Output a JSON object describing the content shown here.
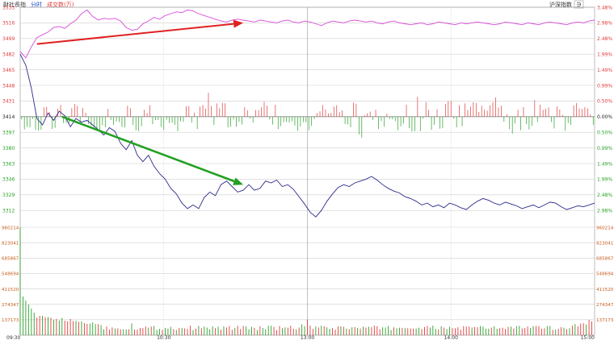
{
  "header": {
    "item1": "財社長指",
    "item2": "分时",
    "item3": "成交数(万)",
    "right_title": "沪深指数",
    "right_btn": "∋"
  },
  "colors": {
    "up": "#e23b3b",
    "down": "#2aa12a",
    "index_line": "#2b2a8a",
    "avg_line": "#d94bd9",
    "grid": "#cfcfcf",
    "arrow_red": "#e02020",
    "arrow_green": "#22a022",
    "axis_text": "#333333"
  },
  "chart_data": {
    "type": "line",
    "price_axis": {
      "left_labels": [
        "3533",
        "3516",
        "3499",
        "3482",
        "3465",
        "3448",
        "3431",
        "3414",
        "3397",
        "3380",
        "3363",
        "3346",
        "3329",
        "3312"
      ],
      "right_labels": [
        "3.48%",
        "2.98%",
        "2.48%",
        "1.99%",
        "1.49%",
        "0.99%",
        "0.50%",
        "0.00%",
        "0.50%",
        "0.99%",
        "1.49%",
        "1.99%",
        "2.48%",
        "2.98%"
      ],
      "base": "3414",
      "ylim": [
        3305,
        3533
      ]
    },
    "volume_axis": {
      "labels": [
        "960214",
        "823041",
        "685867",
        "548694",
        "411520",
        "274347",
        "137173"
      ],
      "ylim": [
        0,
        960214
      ]
    },
    "time_ticks": [
      "09:30",
      "10:30",
      "13:00",
      "14:00",
      "15:00"
    ],
    "index_series": [
      [
        0,
        3482
      ],
      [
        4,
        3470
      ],
      [
        8,
        3445
      ],
      [
        12,
        3412
      ],
      [
        16,
        3405
      ],
      [
        20,
        3418
      ],
      [
        24,
        3410
      ],
      [
        28,
        3420
      ],
      [
        32,
        3415
      ],
      [
        36,
        3403
      ],
      [
        40,
        3412
      ],
      [
        44,
        3408
      ],
      [
        48,
        3410
      ],
      [
        52,
        3405
      ],
      [
        56,
        3400
      ],
      [
        60,
        3394
      ],
      [
        64,
        3402
      ],
      [
        68,
        3398
      ],
      [
        72,
        3385
      ],
      [
        76,
        3378
      ],
      [
        80,
        3388
      ],
      [
        84,
        3372
      ],
      [
        88,
        3365
      ],
      [
        92,
        3372
      ],
      [
        96,
        3360
      ],
      [
        100,
        3352
      ],
      [
        104,
        3346
      ],
      [
        108,
        3336
      ],
      [
        112,
        3330
      ],
      [
        116,
        3320
      ],
      [
        120,
        3314
      ],
      [
        124,
        3318
      ],
      [
        128,
        3314
      ],
      [
        132,
        3326
      ],
      [
        136,
        3332
      ],
      [
        140,
        3328
      ],
      [
        144,
        3340
      ],
      [
        148,
        3344
      ],
      [
        152,
        3338
      ],
      [
        156,
        3332
      ],
      [
        160,
        3334
      ],
      [
        164,
        3340
      ],
      [
        168,
        3334
      ],
      [
        172,
        3336
      ],
      [
        176,
        3344
      ],
      [
        180,
        3342
      ],
      [
        184,
        3345
      ],
      [
        188,
        3338
      ],
      [
        192,
        3340
      ],
      [
        196,
        3335
      ],
      [
        200,
        3327
      ],
      [
        204,
        3319
      ],
      [
        208,
        3310
      ],
      [
        212,
        3305
      ],
      [
        216,
        3312
      ],
      [
        220,
        3322
      ],
      [
        224,
        3330
      ],
      [
        228,
        3337
      ],
      [
        232,
        3340
      ],
      [
        236,
        3338
      ],
      [
        240,
        3342
      ],
      [
        244,
        3344
      ],
      [
        248,
        3346
      ],
      [
        252,
        3349
      ],
      [
        256,
        3345
      ],
      [
        260,
        3340
      ],
      [
        264,
        3336
      ],
      [
        268,
        3333
      ],
      [
        272,
        3331
      ],
      [
        276,
        3327
      ],
      [
        280,
        3325
      ],
      [
        284,
        3322
      ],
      [
        288,
        3318
      ],
      [
        292,
        3320
      ],
      [
        296,
        3316
      ],
      [
        300,
        3318
      ],
      [
        304,
        3315
      ],
      [
        308,
        3320
      ],
      [
        312,
        3318
      ],
      [
        316,
        3315
      ],
      [
        320,
        3313
      ],
      [
        324,
        3318
      ],
      [
        328,
        3322
      ],
      [
        332,
        3325
      ],
      [
        336,
        3323
      ],
      [
        340,
        3320
      ],
      [
        344,
        3318
      ],
      [
        348,
        3321
      ],
      [
        352,
        3319
      ],
      [
        356,
        3317
      ],
      [
        360,
        3314
      ],
      [
        364,
        3316
      ],
      [
        368,
        3318
      ],
      [
        372,
        3315
      ],
      [
        376,
        3318
      ],
      [
        380,
        3321
      ],
      [
        384,
        3320
      ],
      [
        388,
        3316
      ],
      [
        392,
        3313
      ],
      [
        396,
        3315
      ],
      [
        400,
        3317
      ],
      [
        404,
        3316
      ],
      [
        408,
        3318
      ],
      [
        412,
        3320
      ]
    ],
    "avg_series": [
      [
        0,
        3485
      ],
      [
        4,
        3478
      ],
      [
        8,
        3490
      ],
      [
        12,
        3500
      ],
      [
        16,
        3503
      ],
      [
        20,
        3506
      ],
      [
        24,
        3511
      ],
      [
        28,
        3512
      ],
      [
        32,
        3510
      ],
      [
        36,
        3515
      ],
      [
        40,
        3519
      ],
      [
        44,
        3526
      ],
      [
        48,
        3530
      ],
      [
        52,
        3523
      ],
      [
        56,
        3519
      ],
      [
        60,
        3521
      ],
      [
        64,
        3520
      ],
      [
        68,
        3521
      ],
      [
        72,
        3518
      ],
      [
        76,
        3511
      ],
      [
        80,
        3508
      ],
      [
        84,
        3509
      ],
      [
        88,
        3515
      ],
      [
        92,
        3518
      ],
      [
        96,
        3522
      ],
      [
        100,
        3520
      ],
      [
        104,
        3524
      ],
      [
        108,
        3526
      ],
      [
        112,
        3528
      ],
      [
        116,
        3527
      ],
      [
        120,
        3530
      ],
      [
        124,
        3529
      ],
      [
        128,
        3526
      ],
      [
        132,
        3524
      ],
      [
        136,
        3522
      ],
      [
        140,
        3520
      ],
      [
        144,
        3518
      ],
      [
        148,
        3517
      ],
      [
        152,
        3519
      ],
      [
        156,
        3520
      ],
      [
        160,
        3519
      ],
      [
        164,
        3518
      ],
      [
        168,
        3517
      ],
      [
        172,
        3519
      ],
      [
        176,
        3518
      ],
      [
        180,
        3517
      ],
      [
        184,
        3516
      ],
      [
        188,
        3518
      ],
      [
        192,
        3519
      ],
      [
        196,
        3517
      ],
      [
        200,
        3516
      ],
      [
        204,
        3518
      ],
      [
        208,
        3517
      ],
      [
        212,
        3515
      ],
      [
        216,
        3513
      ],
      [
        220,
        3516
      ],
      [
        224,
        3518
      ],
      [
        228,
        3517
      ],
      [
        232,
        3516
      ],
      [
        236,
        3518
      ],
      [
        240,
        3519
      ],
      [
        244,
        3518
      ],
      [
        248,
        3517
      ],
      [
        252,
        3518
      ],
      [
        256,
        3516
      ],
      [
        260,
        3515
      ],
      [
        264,
        3517
      ],
      [
        268,
        3518
      ],
      [
        272,
        3516
      ],
      [
        276,
        3515
      ],
      [
        280,
        3514
      ],
      [
        284,
        3515
      ],
      [
        288,
        3516
      ],
      [
        292,
        3514
      ],
      [
        296,
        3515
      ],
      [
        300,
        3517
      ],
      [
        304,
        3516
      ],
      [
        308,
        3515
      ],
      [
        312,
        3514
      ],
      [
        316,
        3516
      ],
      [
        320,
        3515
      ],
      [
        324,
        3516
      ],
      [
        328,
        3517
      ],
      [
        332,
        3516
      ],
      [
        336,
        3515
      ],
      [
        340,
        3514
      ],
      [
        344,
        3515
      ],
      [
        348,
        3517
      ],
      [
        352,
        3516
      ],
      [
        356,
        3515
      ],
      [
        360,
        3514
      ],
      [
        364,
        3516
      ],
      [
        368,
        3515
      ],
      [
        372,
        3514
      ],
      [
        376,
        3516
      ],
      [
        380,
        3517
      ],
      [
        384,
        3516
      ],
      [
        388,
        3515
      ],
      [
        392,
        3514
      ],
      [
        396,
        3516
      ],
      [
        400,
        3517
      ],
      [
        404,
        3516
      ],
      [
        408,
        3518
      ],
      [
        412,
        3519
      ]
    ],
    "arrows": [
      {
        "color": "red",
        "from": [
          12,
          3493
        ],
        "to": [
          160,
          3516
        ]
      },
      {
        "color": "green",
        "from": [
          30,
          3414
        ],
        "to": [
          160,
          3340
        ]
      }
    ]
  }
}
